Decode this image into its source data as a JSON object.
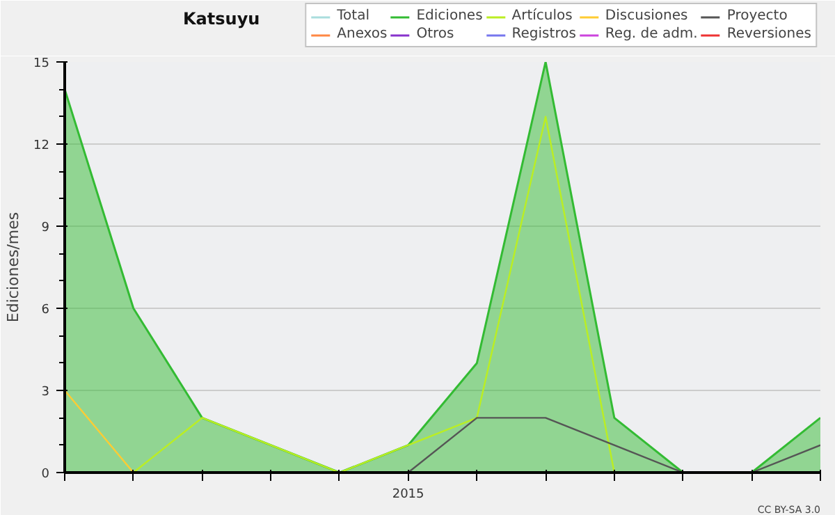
{
  "chart_data": {
    "type": "line",
    "title": "Katsuyu",
    "ylabel": "Ediciones/mes",
    "categories": [
      null,
      null,
      null,
      null,
      null,
      "2015",
      null,
      null,
      null,
      null,
      null,
      null
    ],
    "ylim": [
      0,
      15
    ],
    "yticks": [
      0,
      3,
      6,
      9,
      12,
      15
    ],
    "series": [
      {
        "name": "Total",
        "color": "#aadddd",
        "values": [
          null,
          null,
          null,
          null,
          null,
          null,
          null,
          null,
          null,
          null,
          null,
          null
        ]
      },
      {
        "name": "Ediciones",
        "color": "#33bb33",
        "type": "area",
        "values": [
          14,
          6,
          2,
          1,
          0,
          1,
          4,
          15,
          2,
          0,
          0,
          2
        ]
      },
      {
        "name": "Artículos",
        "color": "#bbee22",
        "values": [
          null,
          0,
          2,
          1,
          0,
          1,
          2,
          13,
          0,
          null,
          null,
          null
        ]
      },
      {
        "name": "Discusiones",
        "color": "#ffcc33",
        "values": [
          3,
          0,
          null,
          null,
          null,
          null,
          null,
          null,
          null,
          null,
          null,
          null
        ]
      },
      {
        "name": "Proyecto",
        "color": "#555555",
        "values": [
          null,
          null,
          null,
          null,
          null,
          0,
          2,
          2,
          1,
          0,
          0,
          1
        ]
      },
      {
        "name": "Anexos",
        "color": "#ff8844",
        "values": [
          null,
          null,
          null,
          null,
          null,
          null,
          null,
          null,
          null,
          null,
          null,
          null
        ]
      },
      {
        "name": "Otros",
        "color": "#8833cc",
        "values": [
          null,
          null,
          null,
          null,
          null,
          null,
          null,
          null,
          null,
          null,
          null,
          null
        ]
      },
      {
        "name": "Registros",
        "color": "#7777ee",
        "values": [
          null,
          null,
          null,
          null,
          null,
          null,
          null,
          null,
          null,
          null,
          null,
          null
        ]
      },
      {
        "name": "Reg. de adm.",
        "color": "#cc44dd",
        "values": [
          null,
          null,
          null,
          null,
          null,
          null,
          null,
          null,
          null,
          null,
          null,
          null
        ]
      },
      {
        "name": "Reversiones",
        "color": "#ee3333",
        "values": [
          null,
          null,
          null,
          null,
          null,
          null,
          null,
          null,
          null,
          null,
          null,
          null
        ]
      }
    ],
    "grid": "y",
    "legend": "top right",
    "annotations": [
      "CC BY-SA 3.0"
    ]
  }
}
